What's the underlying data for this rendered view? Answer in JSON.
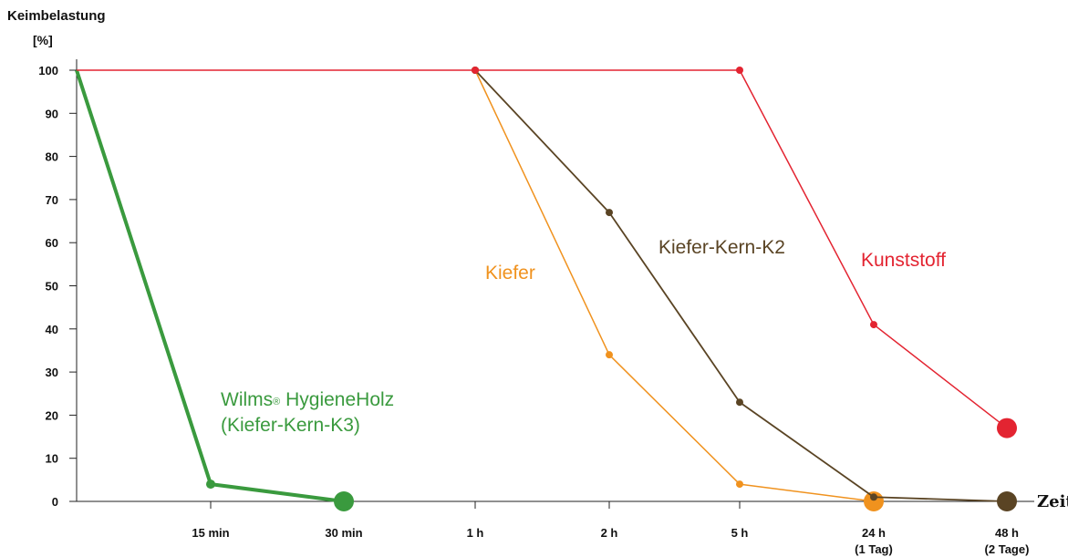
{
  "chart_data": {
    "type": "line",
    "ylabel": "Keimbelastung",
    "yunit": "[%]",
    "xlabel": "Zeit",
    "ylim": [
      0,
      100
    ],
    "yticks": [
      0,
      10,
      20,
      30,
      40,
      50,
      60,
      70,
      80,
      90,
      100
    ],
    "categories": [
      "",
      "15 min",
      "30 min",
      "1 h",
      "2 h",
      "5 h",
      "24 h",
      "48 h"
    ],
    "category_sublabels": [
      "",
      "",
      "",
      "",
      "",
      "",
      "(1 Tag)",
      "(2 Tage)"
    ],
    "grid": false,
    "series": [
      {
        "name_lines": [
          "Wilms® HygieneHolz",
          "(Kiefer-Kern-K3)"
        ],
        "name_main": "Wilms",
        "name_mark": "®",
        "name_rest": " HygieneHolz",
        "color": "#3a9a3e",
        "x": [
          0,
          1,
          2
        ],
        "values": [
          100,
          4,
          0
        ]
      },
      {
        "name": "Kiefer",
        "color": "#f0921e",
        "x": [
          3,
          4,
          5,
          6
        ],
        "values": [
          100,
          34,
          4,
          0
        ]
      },
      {
        "name": "Kiefer-Kern-K2",
        "color": "#5a4424",
        "x": [
          3,
          4,
          5,
          6,
          7
        ],
        "values": [
          100,
          67,
          23,
          1,
          0
        ]
      },
      {
        "name": "Kunststoff",
        "color": "#e32431",
        "x": [
          0,
          3,
          5,
          6,
          7
        ],
        "values": [
          100,
          100,
          100,
          41,
          17
        ]
      }
    ]
  }
}
